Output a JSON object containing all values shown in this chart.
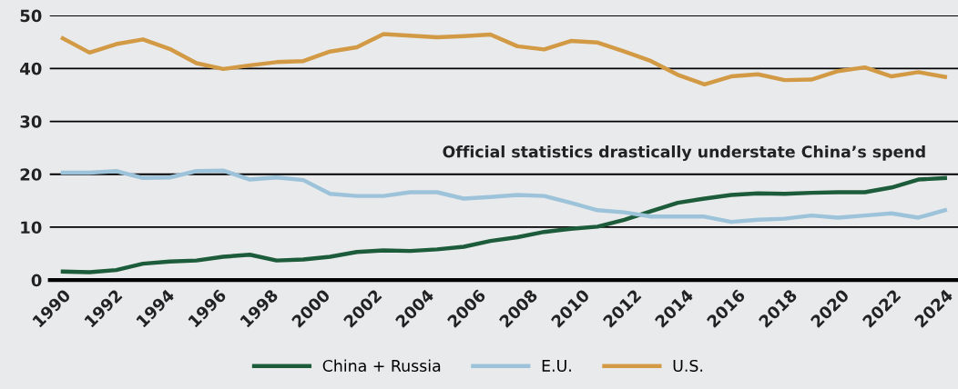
{
  "chart_data": {
    "type": "line",
    "x": [
      1990,
      1991.03,
      1992.06,
      1993.09,
      1994.12,
      1995.15,
      1996.18,
      1997.21,
      1998.24,
      1999.27,
      2000.3,
      2001.33,
      2002.36,
      2003.39,
      2004.42,
      2005.45,
      2006.48,
      2007.52,
      2008.55,
      2009.58,
      2010.61,
      2011.64,
      2012.67,
      2013.7,
      2014.73,
      2015.76,
      2016.79,
      2017.82,
      2018.85,
      2019.88,
      2020.91,
      2021.94,
      2022.97,
      2024
    ],
    "series": [
      {
        "name": "China + Russia",
        "color": "#1d5c3a",
        "values": [
          1.6,
          1.5,
          1.9,
          3.1,
          3.5,
          3.7,
          4.4,
          4.8,
          3.7,
          3.9,
          4.4,
          5.3,
          5.6,
          5.5,
          5.8,
          6.3,
          7.4,
          8.1,
          9.1,
          9.7,
          10.1,
          11.4,
          13.0,
          14.6,
          15.4,
          16.1,
          16.4,
          16.3,
          16.5,
          16.6,
          16.6,
          17.5,
          19.0,
          19.3
        ]
      },
      {
        "name": "E.U.",
        "color": "#9cc3da",
        "values": [
          20.3,
          20.3,
          20.6,
          19.3,
          19.4,
          20.6,
          20.7,
          19.0,
          19.4,
          18.9,
          16.3,
          15.9,
          15.9,
          16.6,
          16.6,
          15.4,
          15.7,
          16.1,
          15.9,
          14.6,
          13.2,
          12.8,
          12.0,
          12.0,
          12.0,
          11.0,
          11.4,
          11.6,
          12.2,
          11.8,
          12.2,
          12.6,
          11.8,
          13.2
        ]
      },
      {
        "name": "U.S.",
        "color": "#d39a45",
        "values": [
          45.7,
          43.0,
          44.6,
          45.5,
          43.7,
          41.0,
          39.9,
          40.6,
          41.2,
          41.4,
          43.2,
          44.0,
          46.5,
          46.2,
          45.9,
          46.1,
          46.4,
          44.2,
          43.6,
          45.2,
          44.9,
          43.2,
          41.4,
          38.8,
          37.0,
          38.5,
          38.9,
          37.8,
          37.9,
          39.5,
          40.2,
          38.5,
          39.3,
          38.4
        ]
      }
    ],
    "annotations": [
      "Official statistics drastically understate China’s spend"
    ],
    "xlim": [
      1989.5,
      2024.5
    ],
    "xticks": [
      1990,
      1992,
      1994,
      1996,
      1998,
      2000,
      2002,
      2004,
      2006,
      2008,
      2010,
      2012,
      2014,
      2016,
      2018,
      2020,
      2022,
      2024
    ],
    "ylim": [
      0,
      50
    ],
    "yticks": [
      0,
      10,
      20,
      30,
      40,
      50
    ],
    "grid": "y",
    "legend": "bottom",
    "line_style": "solid",
    "marker": "none"
  }
}
